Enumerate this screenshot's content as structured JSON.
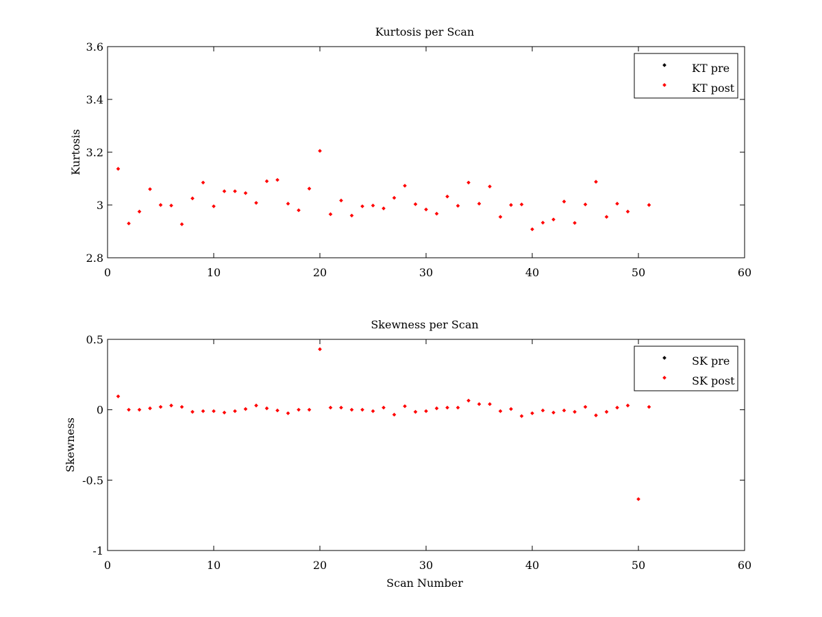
{
  "chart_data": [
    {
      "type": "scatter",
      "title": "Kurtosis per Scan",
      "xlabel": "",
      "ylabel": "Kurtosis",
      "xlim": [
        0,
        60
      ],
      "ylim": [
        2.8,
        3.6
      ],
      "x_ticks": [
        "0",
        "10",
        "20",
        "30",
        "40",
        "50",
        "60"
      ],
      "y_ticks": [
        "2.8",
        "3",
        "3.2",
        "3.4",
        "3.6"
      ],
      "grid": false,
      "legend_position": "top-right",
      "series": [
        {
          "name": "KT pre",
          "color": "#000000",
          "marker": "dot",
          "x": [],
          "y": []
        },
        {
          "name": "KT post",
          "color": "#ff0000",
          "marker": "dot",
          "x": [
            1,
            2,
            3,
            4,
            5,
            6,
            7,
            8,
            9,
            10,
            11,
            12,
            13,
            14,
            15,
            16,
            17,
            18,
            19,
            20,
            21,
            22,
            23,
            24,
            25,
            26,
            27,
            28,
            29,
            30,
            31,
            32,
            33,
            34,
            35,
            36,
            37,
            38,
            39,
            40,
            41,
            42,
            43,
            44,
            45,
            46,
            47,
            48,
            49,
            51
          ],
          "y": [
            3.137,
            2.93,
            2.975,
            3.06,
            3.0,
            2.998,
            2.927,
            3.025,
            3.085,
            2.995,
            3.052,
            3.052,
            3.045,
            3.008,
            3.09,
            3.095,
            3.005,
            2.98,
            3.062,
            3.205,
            2.965,
            3.017,
            2.96,
            2.995,
            2.998,
            2.987,
            3.027,
            3.073,
            3.003,
            2.983,
            2.967,
            3.032,
            2.997,
            3.085,
            3.005,
            3.07,
            2.955,
            3.0,
            3.002,
            2.908,
            2.933,
            2.945,
            3.013,
            2.932,
            3.002,
            3.088,
            2.955,
            3.005,
            2.975,
            3.0
          ]
        }
      ]
    },
    {
      "type": "scatter",
      "title": "Skewness per Scan",
      "xlabel": "Scan Number",
      "ylabel": "Skewness",
      "xlim": [
        0,
        60
      ],
      "ylim": [
        -1,
        0.5
      ],
      "x_ticks": [
        "0",
        "10",
        "20",
        "30",
        "40",
        "50",
        "60"
      ],
      "y_ticks": [
        "-1",
        "-0.5",
        "0",
        "0.5"
      ],
      "grid": false,
      "legend_position": "top-right",
      "series": [
        {
          "name": "SK pre",
          "color": "#000000",
          "marker": "dot",
          "x": [],
          "y": []
        },
        {
          "name": "SK post",
          "color": "#ff0000",
          "marker": "dot",
          "x": [
            1,
            2,
            3,
            4,
            5,
            6,
            7,
            8,
            9,
            10,
            11,
            12,
            13,
            14,
            15,
            16,
            17,
            18,
            19,
            20,
            21,
            22,
            23,
            24,
            25,
            26,
            27,
            28,
            29,
            30,
            31,
            32,
            33,
            34,
            35,
            36,
            37,
            38,
            39,
            40,
            41,
            42,
            43,
            44,
            45,
            46,
            47,
            48,
            49,
            50,
            51
          ],
          "y": [
            0.095,
            0.0,
            0.0,
            0.01,
            0.02,
            0.03,
            0.02,
            -0.015,
            -0.01,
            -0.01,
            -0.02,
            -0.01,
            0.005,
            0.03,
            0.01,
            -0.005,
            -0.025,
            0.0,
            0.0,
            0.43,
            0.015,
            0.015,
            0.0,
            0.0,
            -0.01,
            0.015,
            -0.035,
            0.025,
            -0.015,
            -0.01,
            0.01,
            0.015,
            0.015,
            0.065,
            0.04,
            0.04,
            -0.01,
            0.005,
            -0.045,
            -0.025,
            -0.005,
            -0.02,
            -0.005,
            -0.015,
            0.02,
            -0.04,
            -0.015,
            0.015,
            0.03,
            -0.635,
            0.02
          ]
        }
      ]
    }
  ]
}
